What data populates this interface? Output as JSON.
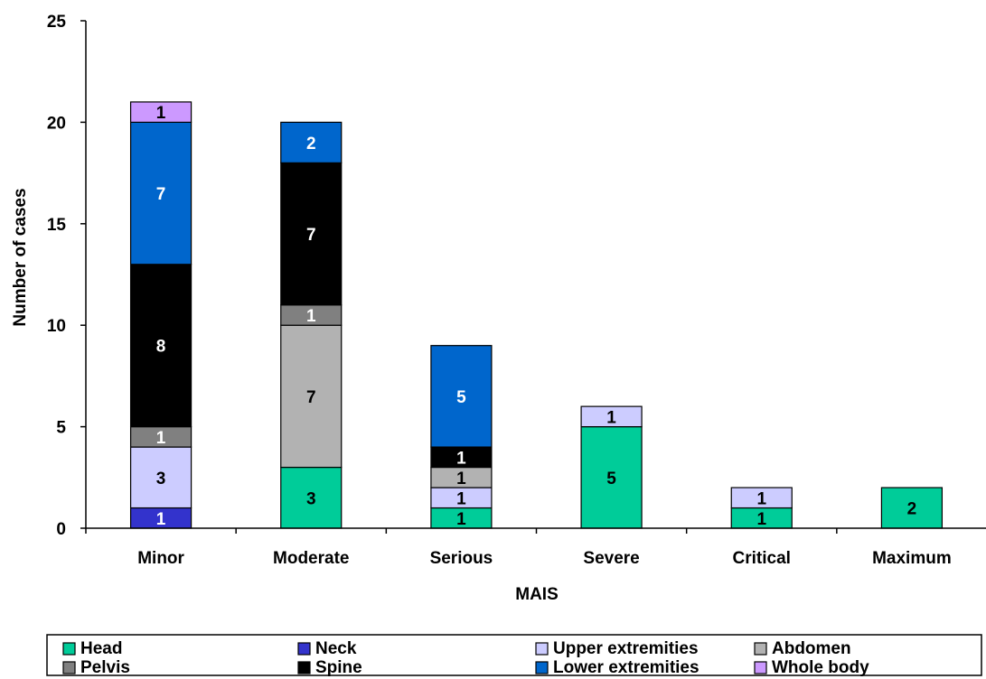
{
  "chart_data": {
    "type": "bar",
    "stacked": true,
    "title": "",
    "xlabel": "MAIS",
    "ylabel": "Number of cases",
    "ylim": [
      0,
      25
    ],
    "yticks": [
      0,
      5,
      10,
      15,
      20,
      25
    ],
    "grid": false,
    "legend_position": "bottom",
    "categories": [
      "Minor",
      "Moderate",
      "Serious",
      "Severe",
      "Critical",
      "Maximum"
    ],
    "series": [
      {
        "name": "Head",
        "color": "#00cc99",
        "label_color": "#000000",
        "values": [
          0,
          3,
          1,
          5,
          1,
          2
        ]
      },
      {
        "name": "Neck",
        "color": "#3333cc",
        "label_color": "#ffffff",
        "values": [
          1,
          0,
          0,
          0,
          0,
          0
        ]
      },
      {
        "name": "Upper extremities",
        "color": "#ccccff",
        "label_color": "#000000",
        "values": [
          3,
          0,
          1,
          1,
          1,
          0
        ]
      },
      {
        "name": "Abdomen",
        "color": "#b2b2b2",
        "label_color": "#000000",
        "values": [
          0,
          7,
          1,
          0,
          0,
          0
        ]
      },
      {
        "name": "Pelvis",
        "color": "#808080",
        "label_color": "#ffffff",
        "values": [
          1,
          1,
          0,
          0,
          0,
          0
        ]
      },
      {
        "name": "Spine",
        "color": "#000000",
        "label_color": "#ffffff",
        "values": [
          8,
          7,
          1,
          0,
          0,
          0
        ]
      },
      {
        "name": "Lower extremities",
        "color": "#0066cc",
        "label_color": "#ffffff",
        "values": [
          7,
          2,
          5,
          0,
          0,
          0
        ]
      },
      {
        "name": "Whole body",
        "color": "#cc99ff",
        "label_color": "#000000",
        "values": [
          1,
          0,
          0,
          0,
          0,
          0
        ]
      }
    ]
  }
}
